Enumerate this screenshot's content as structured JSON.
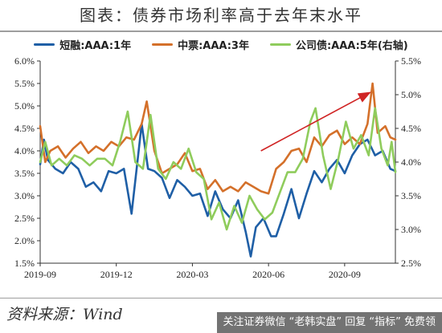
{
  "header": {
    "title": "图表：债券市场利率高于去年末水平"
  },
  "footer": {
    "source": "资料来源：Wind",
    "watermark": "关注证券微信 “老韩实盘” 回复 “指标” 免费领"
  },
  "chart_data": {
    "type": "line",
    "title": "图表：债券市场利率高于去年末水平",
    "legend_position": "top",
    "grid": false,
    "y_left": {
      "min": 1.5,
      "max": 6.0,
      "ticks": [
        "1.5%",
        "2.0%",
        "2.5%",
        "3.0%",
        "3.5%",
        "4.0%",
        "4.5%",
        "5.0%",
        "5.5%",
        "6.0%"
      ]
    },
    "y_right": {
      "min": 2.5,
      "max": 5.5,
      "ticks": [
        "2.5%",
        "3.0%",
        "3.5%",
        "4.0%",
        "4.5%",
        "5.0%",
        "5.5%"
      ]
    },
    "x_range": [
      0,
      14
    ],
    "x_ticks": [
      {
        "label": "2019-09",
        "pos": 0
      },
      {
        "label": "2019-12",
        "pos": 3
      },
      {
        "label": "2020-03",
        "pos": 6
      },
      {
        "label": "2020-06",
        "pos": 9
      },
      {
        "label": "2020-09",
        "pos": 12
      }
    ],
    "series": [
      {
        "name": "短融:AAA:1年",
        "axis": "left",
        "color": "#1f5fa6",
        "points": [
          [
            0.0,
            3.7
          ],
          [
            0.15,
            4.25
          ],
          [
            0.3,
            3.8
          ],
          [
            0.6,
            3.6
          ],
          [
            0.9,
            3.5
          ],
          [
            1.2,
            3.75
          ],
          [
            1.5,
            3.6
          ],
          [
            1.8,
            3.2
          ],
          [
            2.1,
            3.3
          ],
          [
            2.4,
            3.1
          ],
          [
            2.7,
            3.55
          ],
          [
            3.0,
            3.5
          ],
          [
            3.3,
            3.6
          ],
          [
            3.6,
            2.6
          ],
          [
            3.85,
            3.85
          ],
          [
            4.0,
            4.6
          ],
          [
            4.25,
            3.6
          ],
          [
            4.5,
            3.55
          ],
          [
            4.8,
            3.4
          ],
          [
            5.1,
            2.95
          ],
          [
            5.4,
            3.35
          ],
          [
            5.7,
            3.2
          ],
          [
            6.0,
            3.0
          ],
          [
            6.3,
            3.05
          ],
          [
            6.6,
            2.55
          ],
          [
            6.9,
            3.1
          ],
          [
            7.2,
            2.7
          ],
          [
            7.5,
            2.5
          ],
          [
            7.8,
            2.9
          ],
          [
            8.1,
            2.2
          ],
          [
            8.3,
            1.65
          ],
          [
            8.5,
            2.3
          ],
          [
            8.8,
            2.5
          ],
          [
            9.1,
            2.1
          ],
          [
            9.3,
            2.1
          ],
          [
            9.6,
            2.6
          ],
          [
            9.9,
            3.15
          ],
          [
            10.2,
            2.5
          ],
          [
            10.5,
            3.05
          ],
          [
            10.8,
            3.55
          ],
          [
            11.1,
            3.3
          ],
          [
            11.4,
            3.6
          ],
          [
            11.7,
            3.8
          ],
          [
            12.0,
            3.5
          ],
          [
            12.3,
            3.9
          ],
          [
            12.6,
            4.15
          ],
          [
            12.9,
            4.25
          ],
          [
            13.2,
            3.9
          ],
          [
            13.5,
            4.0
          ],
          [
            13.8,
            3.6
          ],
          [
            14.0,
            3.55
          ]
        ]
      },
      {
        "name": "中票:AAA:3年",
        "axis": "left",
        "color": "#d4702a",
        "points": [
          [
            0.0,
            4.55
          ],
          [
            0.2,
            3.75
          ],
          [
            0.4,
            4.0
          ],
          [
            0.7,
            4.1
          ],
          [
            1.0,
            3.85
          ],
          [
            1.3,
            4.05
          ],
          [
            1.6,
            4.2
          ],
          [
            1.9,
            3.95
          ],
          [
            2.2,
            4.1
          ],
          [
            2.5,
            4.0
          ],
          [
            2.8,
            4.2
          ],
          [
            3.1,
            4.1
          ],
          [
            3.4,
            4.3
          ],
          [
            3.7,
            4.25
          ],
          [
            4.0,
            4.6
          ],
          [
            4.2,
            5.1
          ],
          [
            4.5,
            4.0
          ],
          [
            4.8,
            3.5
          ],
          [
            5.1,
            3.6
          ],
          [
            5.4,
            3.7
          ],
          [
            5.7,
            3.95
          ],
          [
            6.0,
            3.55
          ],
          [
            6.3,
            3.6
          ],
          [
            6.6,
            3.15
          ],
          [
            6.9,
            3.35
          ],
          [
            7.2,
            3.1
          ],
          [
            7.5,
            3.2
          ],
          [
            7.8,
            3.1
          ],
          [
            8.1,
            3.3
          ],
          [
            8.4,
            3.2
          ],
          [
            8.7,
            3.1
          ],
          [
            9.0,
            3.05
          ],
          [
            9.3,
            3.6
          ],
          [
            9.6,
            3.75
          ],
          [
            9.9,
            4.0
          ],
          [
            10.2,
            4.05
          ],
          [
            10.5,
            3.75
          ],
          [
            10.8,
            4.3
          ],
          [
            11.1,
            4.1
          ],
          [
            11.4,
            4.35
          ],
          [
            11.7,
            4.45
          ],
          [
            12.0,
            4.15
          ],
          [
            12.3,
            4.3
          ],
          [
            12.6,
            4.15
          ],
          [
            12.9,
            4.6
          ],
          [
            13.1,
            5.5
          ],
          [
            13.3,
            4.4
          ],
          [
            13.6,
            4.55
          ],
          [
            13.8,
            4.3
          ],
          [
            14.0,
            4.25
          ]
        ]
      },
      {
        "name": "公司债:AAA:5年(右轴)",
        "axis": "right",
        "color": "#8fcc5c",
        "points": [
          [
            0.0,
            4.0
          ],
          [
            0.2,
            4.3
          ],
          [
            0.45,
            3.95
          ],
          [
            0.75,
            4.05
          ],
          [
            1.05,
            3.95
          ],
          [
            1.35,
            4.1
          ],
          [
            1.65,
            4.05
          ],
          [
            1.95,
            3.95
          ],
          [
            2.25,
            4.05
          ],
          [
            2.55,
            4.05
          ],
          [
            2.85,
            3.95
          ],
          [
            3.15,
            4.3
          ],
          [
            3.45,
            4.75
          ],
          [
            3.75,
            4.0
          ],
          [
            4.05,
            3.9
          ],
          [
            4.35,
            4.7
          ],
          [
            4.65,
            3.9
          ],
          [
            4.95,
            3.75
          ],
          [
            5.25,
            4.0
          ],
          [
            5.55,
            3.9
          ],
          [
            5.85,
            4.2
          ],
          [
            6.15,
            3.85
          ],
          [
            6.45,
            3.75
          ],
          [
            6.75,
            3.15
          ],
          [
            7.05,
            3.4
          ],
          [
            7.35,
            3.0
          ],
          [
            7.65,
            3.35
          ],
          [
            7.95,
            3.1
          ],
          [
            8.25,
            3.5
          ],
          [
            8.55,
            3.3
          ],
          [
            8.85,
            3.15
          ],
          [
            9.15,
            3.25
          ],
          [
            9.45,
            3.55
          ],
          [
            9.75,
            3.85
          ],
          [
            10.05,
            3.85
          ],
          [
            10.35,
            4.05
          ],
          [
            10.65,
            4.6
          ],
          [
            10.85,
            4.8
          ],
          [
            11.15,
            4.1
          ],
          [
            11.45,
            3.6
          ],
          [
            11.75,
            4.05
          ],
          [
            12.05,
            4.6
          ],
          [
            12.35,
            4.2
          ],
          [
            12.65,
            4.4
          ],
          [
            12.95,
            4.1
          ],
          [
            13.2,
            4.8
          ],
          [
            13.45,
            4.2
          ],
          [
            13.7,
            3.95
          ],
          [
            13.85,
            4.3
          ],
          [
            14.0,
            3.85
          ]
        ]
      }
    ],
    "annotations": [
      {
        "type": "arrow",
        "color": "#d02424",
        "from": [
          8.7,
          4.0
        ],
        "to": [
          13.0,
          5.3
        ],
        "axis": "left"
      }
    ]
  }
}
